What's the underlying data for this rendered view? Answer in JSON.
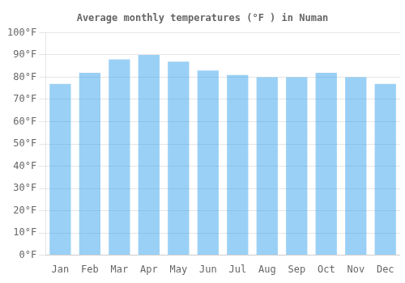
{
  "chart_data": {
    "type": "bar",
    "title": "Average monthly temperatures (°F ) in Numan",
    "categories": [
      "Jan",
      "Feb",
      "Mar",
      "Apr",
      "May",
      "Jun",
      "Jul",
      "Aug",
      "Sep",
      "Oct",
      "Nov",
      "Dec"
    ],
    "values": [
      77,
      82,
      88,
      90,
      87,
      83,
      81,
      80,
      80,
      82,
      80,
      77
    ],
    "ylim": [
      0,
      100
    ],
    "yticks": [
      {
        "value": 0,
        "label": "0°F"
      },
      {
        "value": 10,
        "label": "10°F"
      },
      {
        "value": 20,
        "label": "20°F"
      },
      {
        "value": 30,
        "label": "30°F"
      },
      {
        "value": 40,
        "label": "40°F"
      },
      {
        "value": 50,
        "label": "50°F"
      },
      {
        "value": 60,
        "label": "60°F"
      },
      {
        "value": 70,
        "label": "70°F"
      },
      {
        "value": 80,
        "label": "80°F"
      },
      {
        "value": 90,
        "label": "90°F"
      },
      {
        "value": 100,
        "label": "100°F"
      }
    ],
    "grid": true
  }
}
